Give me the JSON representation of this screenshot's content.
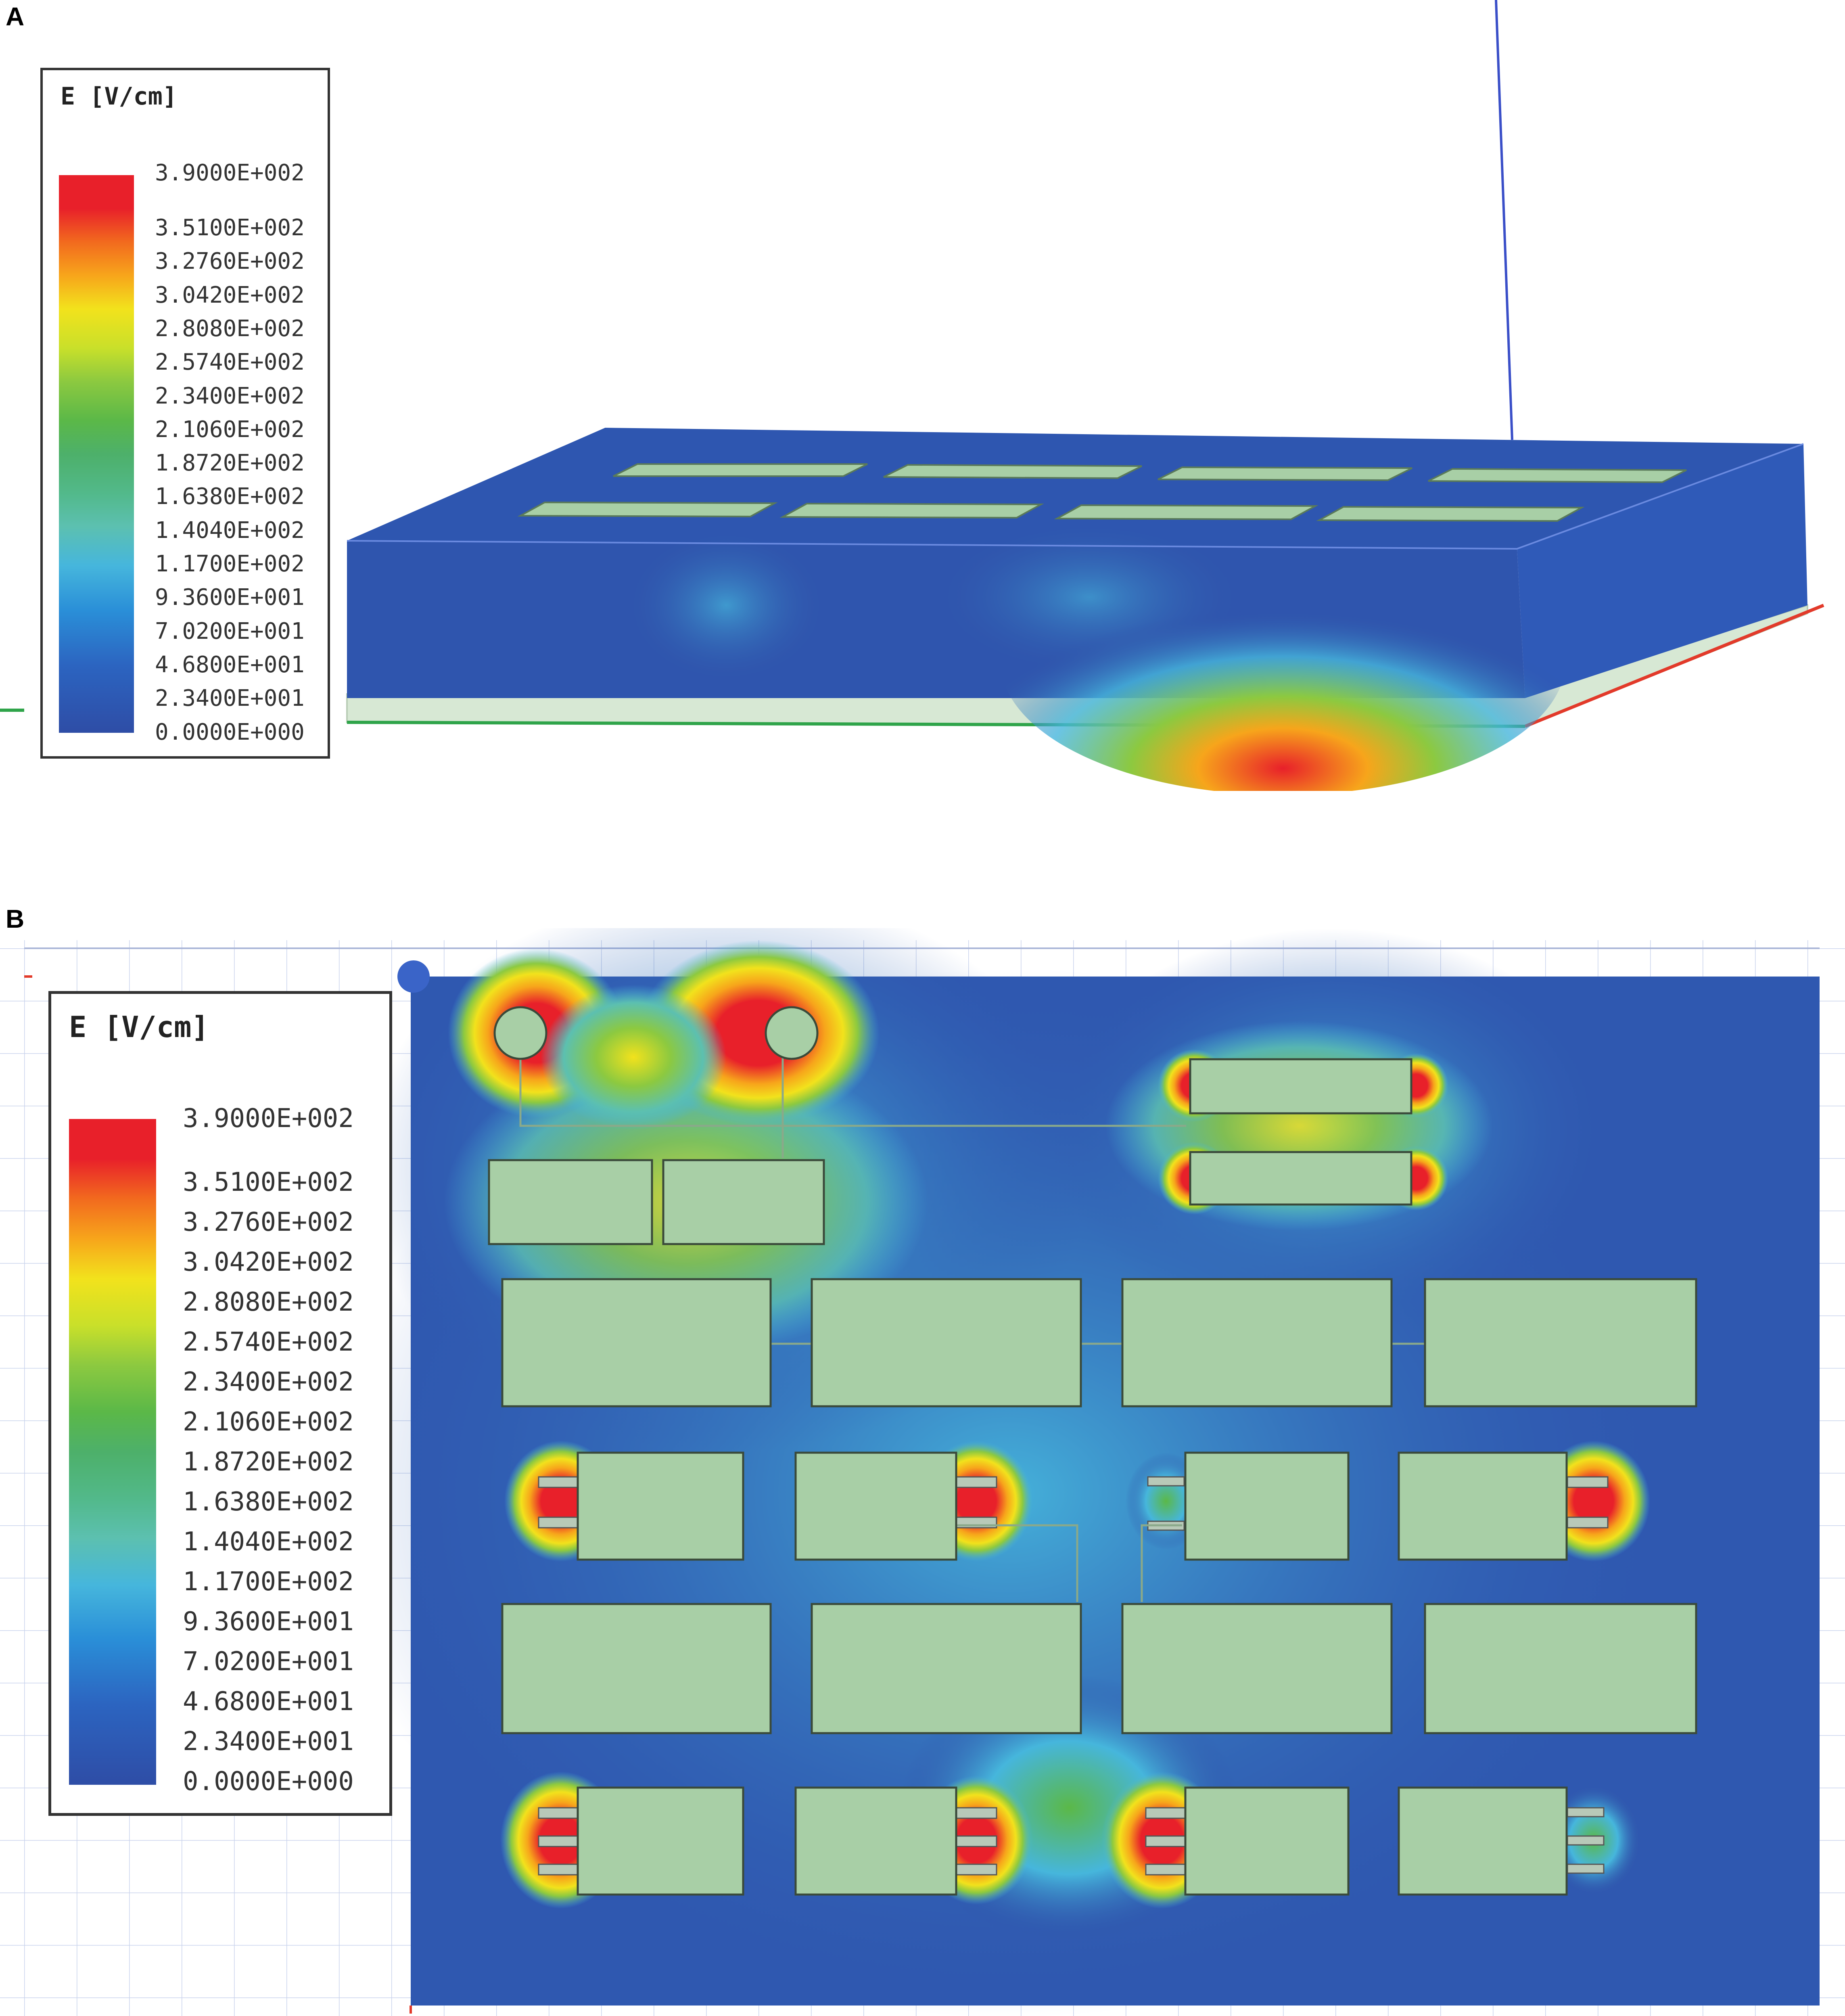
{
  "panel_a": {
    "letter": "A",
    "legend": {
      "title": "E [V/cm]",
      "ticks": [
        "3.9000E+002",
        "3.5100E+002",
        "3.2760E+002",
        "3.0420E+002",
        "2.8080E+002",
        "2.5740E+002",
        "2.3400E+002",
        "2.1060E+002",
        "1.8720E+002",
        "1.6380E+002",
        "1.4040E+002",
        "1.1700E+002",
        "9.3600E+001",
        "7.0200E+001",
        "4.6800E+001",
        "2.3400E+001",
        "0.0000E+000"
      ]
    }
  },
  "panel_b": {
    "letter": "B",
    "legend": {
      "title": "E [V/cm]",
      "ticks": [
        "3.9000E+002",
        "3.5100E+002",
        "3.2760E+002",
        "3.0420E+002",
        "2.8080E+002",
        "2.5740E+002",
        "2.3400E+002",
        "2.1060E+002",
        "1.8720E+002",
        "1.6380E+002",
        "1.4040E+002",
        "1.1700E+002",
        "9.3600E+001",
        "7.0200E+001",
        "4.6800E+001",
        "2.3400E+001",
        "0.0000E+000"
      ]
    }
  },
  "colors": {
    "colormap": [
      "#e8202a",
      "#f26a1e",
      "#f7a51b",
      "#f2e21c",
      "#c9e02a",
      "#8cc940",
      "#5bb848",
      "#4db06a",
      "#52b98a",
      "#5cc0b0",
      "#46b6dc",
      "#2a8fd8",
      "#2c64c0",
      "#2e4da6"
    ],
    "pad": "#a8cfa6",
    "pad_border": "#3a4a3a",
    "board_field": "#2f58b0"
  }
}
